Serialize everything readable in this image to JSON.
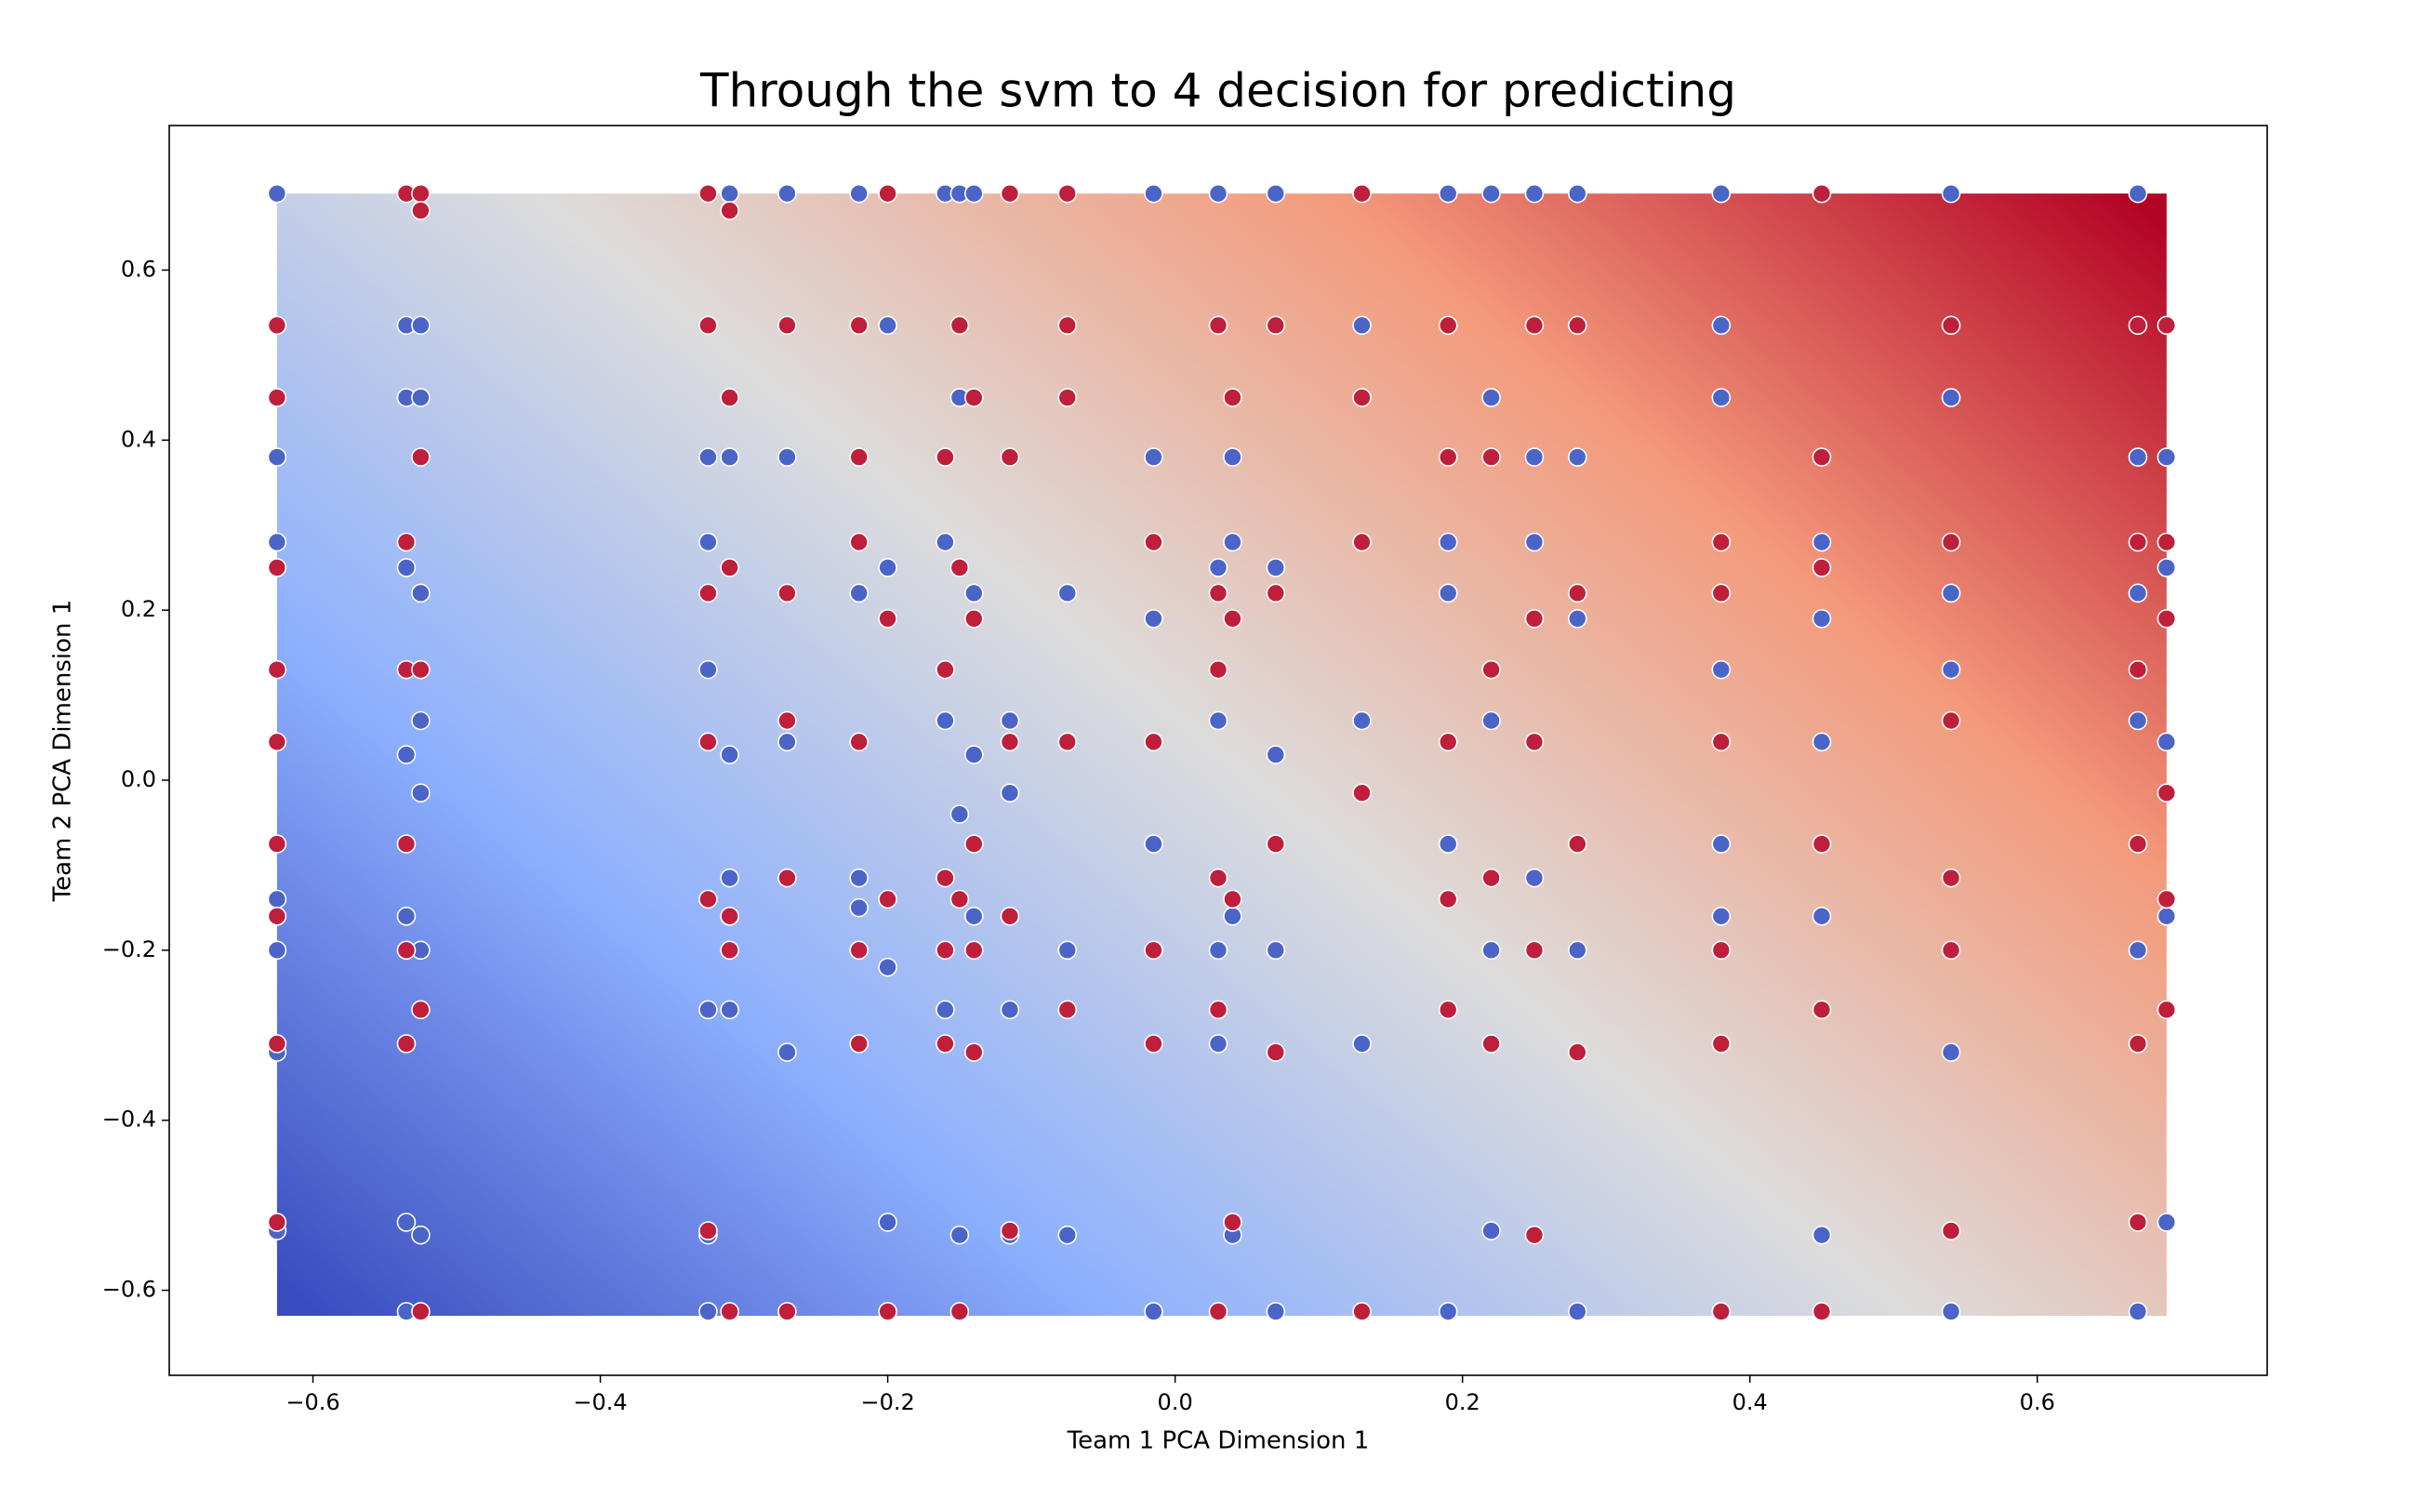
{
  "chart_data": {
    "type": "scatter",
    "title": "Through the svm to 4 decision for predicting",
    "x_label": "Team 1 PCA Dimension 1",
    "y_label": "Team 2 PCA Dimension 1",
    "xlim": [
      -0.7,
      0.76
    ],
    "ylim": [
      -0.7,
      0.77
    ],
    "xticks": [
      {
        "value": -0.6,
        "label": "−0.6"
      },
      {
        "value": -0.4,
        "label": "−0.4"
      },
      {
        "value": -0.2,
        "label": "−0.2"
      },
      {
        "value": 0,
        "label": "0.0"
      },
      0.2,
      0.4,
      0.6
    ],
    "yticks": [
      {
        "value": -0.6,
        "label": "−0.6"
      },
      {
        "value": -0.4,
        "label": "−0.4"
      },
      {
        "value": -0.2,
        "label": "−0.2"
      },
      {
        "value": 0,
        "label": "0.0"
      },
      0.2,
      0.4,
      0.6
    ],
    "grid": false,
    "decision_region": {
      "xlim": [
        -0.625,
        0.69
      ],
      "ylim": [
        -0.63,
        0.69
      ],
      "colors": [
        "#3b4cc0",
        "#8db0fe",
        "#dddcdc",
        "#f49a7b",
        "#b40426"
      ]
    },
    "series": [
      {
        "color": "#4b64c8",
        "x": [
          -0.625,
          -0.625,
          -0.625,
          -0.625,
          -0.625,
          -0.625,
          -0.625,
          -0.535,
          -0.535,
          -0.535,
          -0.535,
          -0.535,
          -0.535,
          -0.535,
          -0.525,
          -0.525,
          -0.525,
          -0.525,
          -0.525,
          -0.525,
          -0.525,
          -0.325,
          -0.325,
          -0.325,
          -0.325,
          -0.325,
          -0.325,
          -0.31,
          -0.31,
          -0.31,
          -0.31,
          -0.31,
          -0.27,
          -0.27,
          -0.27,
          -0.27,
          -0.22,
          -0.22,
          -0.22,
          -0.22,
          -0.2,
          -0.2,
          -0.2,
          -0.2,
          -0.16,
          -0.16,
          -0.16,
          -0.16,
          -0.15,
          -0.15,
          -0.15,
          -0.15,
          -0.14,
          -0.14,
          -0.14,
          -0.14,
          -0.115,
          -0.115,
          -0.115,
          -0.115,
          -0.075,
          -0.075,
          -0.075,
          -0.015,
          -0.015,
          -0.015,
          -0.015,
          -0.015,
          0.03,
          0.03,
          0.03,
          0.03,
          0.03,
          0.04,
          0.04,
          0.04,
          0.04,
          0.07,
          0.07,
          0.07,
          0.07,
          0.07,
          0.13,
          0.13,
          0.13,
          0.19,
          0.19,
          0.19,
          0.19,
          0.19,
          0.22,
          0.22,
          0.22,
          0.22,
          0.22,
          0.25,
          0.25,
          0.25,
          0.25,
          0.28,
          0.28,
          0.28,
          0.28,
          0.28,
          0.38,
          0.38,
          0.38,
          0.38,
          0.38,
          0.38,
          0.45,
          0.45,
          0.45,
          0.45,
          0.45,
          0.54,
          0.54,
          0.54,
          0.54,
          0.54,
          0.54,
          0.67,
          0.67,
          0.67,
          0.67,
          0.67,
          0.67,
          0.69,
          0.69,
          0.69,
          0.69,
          0.69
        ],
        "y": [
          0.69,
          0.38,
          0.28,
          -0.2,
          -0.32,
          -0.53,
          -0.14,
          0.535,
          0.45,
          0.25,
          0.03,
          -0.16,
          -0.52,
          -0.625,
          0.535,
          0.45,
          0.22,
          0.07,
          -0.015,
          -0.2,
          -0.535,
          0.38,
          0.28,
          0.13,
          -0.27,
          -0.625,
          -0.535,
          0.69,
          0.38,
          0.03,
          -0.115,
          -0.27,
          0.69,
          0.38,
          0.045,
          -0.32,
          0.69,
          0.22,
          -0.115,
          -0.15,
          0.535,
          0.25,
          -0.22,
          -0.52,
          0.69,
          0.28,
          0.07,
          -0.27,
          0.69,
          0.45,
          -0.04,
          -0.535,
          0.69,
          0.22,
          0.03,
          -0.16,
          0.07,
          -0.015,
          -0.27,
          -0.535,
          0.22,
          -0.2,
          -0.535,
          0.69,
          0.38,
          0.19,
          -0.075,
          -0.625,
          0.69,
          0.25,
          0.07,
          -0.2,
          -0.31,
          0.38,
          0.28,
          -0.16,
          -0.535,
          0.69,
          0.25,
          0.03,
          -0.2,
          -0.625,
          0.535,
          0.07,
          -0.31,
          0.69,
          0.28,
          0.22,
          -0.075,
          -0.625,
          0.69,
          0.45,
          0.07,
          -0.2,
          -0.53,
          0.69,
          0.38,
          0.28,
          -0.115,
          0.69,
          0.38,
          0.19,
          -0.2,
          -0.625,
          0.69,
          0.535,
          0.45,
          0.13,
          -0.075,
          -0.16,
          0.28,
          0.19,
          0.045,
          -0.16,
          -0.535,
          0.69,
          0.45,
          0.22,
          0.13,
          -0.32,
          -0.625,
          0.69,
          0.38,
          0.22,
          0.07,
          -0.2,
          -0.625,
          0.38,
          0.25,
          0.045,
          -0.16,
          -0.52
        ]
      },
      {
        "color": "#bf1f3a",
        "x": [
          -0.625,
          -0.625,
          -0.625,
          -0.625,
          -0.625,
          -0.625,
          -0.625,
          -0.625,
          -0.625,
          -0.535,
          -0.535,
          -0.535,
          -0.535,
          -0.535,
          -0.535,
          -0.525,
          -0.525,
          -0.525,
          -0.525,
          -0.525,
          -0.525,
          -0.325,
          -0.325,
          -0.325,
          -0.325,
          -0.325,
          -0.325,
          -0.31,
          -0.31,
          -0.31,
          -0.31,
          -0.31,
          -0.31,
          -0.27,
          -0.27,
          -0.27,
          -0.27,
          -0.27,
          -0.22,
          -0.22,
          -0.22,
          -0.22,
          -0.22,
          -0.22,
          -0.2,
          -0.2,
          -0.2,
          -0.2,
          -0.16,
          -0.16,
          -0.16,
          -0.16,
          -0.16,
          -0.15,
          -0.15,
          -0.15,
          -0.15,
          -0.14,
          -0.14,
          -0.14,
          -0.14,
          -0.14,
          -0.115,
          -0.115,
          -0.115,
          -0.115,
          -0.115,
          -0.075,
          -0.075,
          -0.075,
          -0.075,
          -0.075,
          -0.015,
          -0.015,
          -0.015,
          -0.015,
          0.03,
          0.03,
          0.03,
          0.03,
          0.03,
          0.03,
          0.04,
          0.04,
          0.04,
          0.04,
          0.07,
          0.07,
          0.07,
          0.07,
          0.13,
          0.13,
          0.13,
          0.13,
          0.13,
          0.19,
          0.19,
          0.19,
          0.19,
          0.19,
          0.22,
          0.22,
          0.22,
          0.22,
          0.25,
          0.25,
          0.25,
          0.25,
          0.25,
          0.28,
          0.28,
          0.28,
          0.28,
          0.38,
          0.38,
          0.38,
          0.38,
          0.38,
          0.38,
          0.45,
          0.45,
          0.45,
          0.45,
          0.45,
          0.45,
          0.54,
          0.54,
          0.54,
          0.54,
          0.54,
          0.54,
          0.67,
          0.67,
          0.67,
          0.67,
          0.67,
          0.67,
          0.69,
          0.69,
          0.69,
          0.69,
          0.69,
          0.69
        ],
        "y": [
          0.535,
          0.45,
          0.25,
          0.13,
          0.045,
          -0.075,
          -0.16,
          -0.31,
          -0.52,
          0.69,
          0.28,
          0.13,
          -0.075,
          -0.2,
          -0.31,
          0.69,
          0.67,
          0.38,
          0.13,
          -0.27,
          -0.625,
          0.69,
          0.535,
          0.22,
          0.045,
          -0.14,
          -0.53,
          0.67,
          0.45,
          0.25,
          -0.16,
          -0.2,
          -0.625,
          0.535,
          0.22,
          0.07,
          -0.115,
          -0.625,
          0.535,
          0.38,
          0.28,
          0.045,
          -0.2,
          -0.31,
          0.69,
          0.19,
          -0.14,
          -0.625,
          0.38,
          0.13,
          -0.115,
          -0.2,
          -0.31,
          0.535,
          0.25,
          -0.14,
          -0.625,
          0.45,
          0.19,
          -0.075,
          -0.2,
          -0.32,
          0.69,
          0.38,
          0.045,
          -0.16,
          -0.53,
          0.69,
          0.535,
          0.45,
          0.045,
          -0.27,
          0.28,
          0.045,
          -0.2,
          -0.31,
          0.535,
          0.22,
          0.13,
          -0.115,
          -0.27,
          -0.625,
          0.45,
          0.19,
          -0.14,
          -0.52,
          0.535,
          0.22,
          -0.075,
          -0.32,
          0.69,
          0.45,
          0.28,
          -0.015,
          -0.625,
          0.535,
          0.38,
          0.045,
          -0.14,
          -0.27,
          0.38,
          0.13,
          -0.115,
          -0.31,
          0.535,
          0.19,
          0.045,
          -0.2,
          -0.535,
          0.535,
          0.22,
          -0.075,
          -0.32,
          0.28,
          0.22,
          0.045,
          -0.2,
          -0.31,
          -0.625,
          0.69,
          0.38,
          0.25,
          -0.075,
          -0.27,
          -0.625,
          0.535,
          0.28,
          0.07,
          -0.115,
          -0.2,
          -0.53,
          0.535,
          0.28,
          0.13,
          -0.075,
          -0.31,
          -0.52,
          0.535,
          0.28,
          0.19,
          -0.015,
          -0.14,
          -0.27
        ]
      }
    ]
  }
}
